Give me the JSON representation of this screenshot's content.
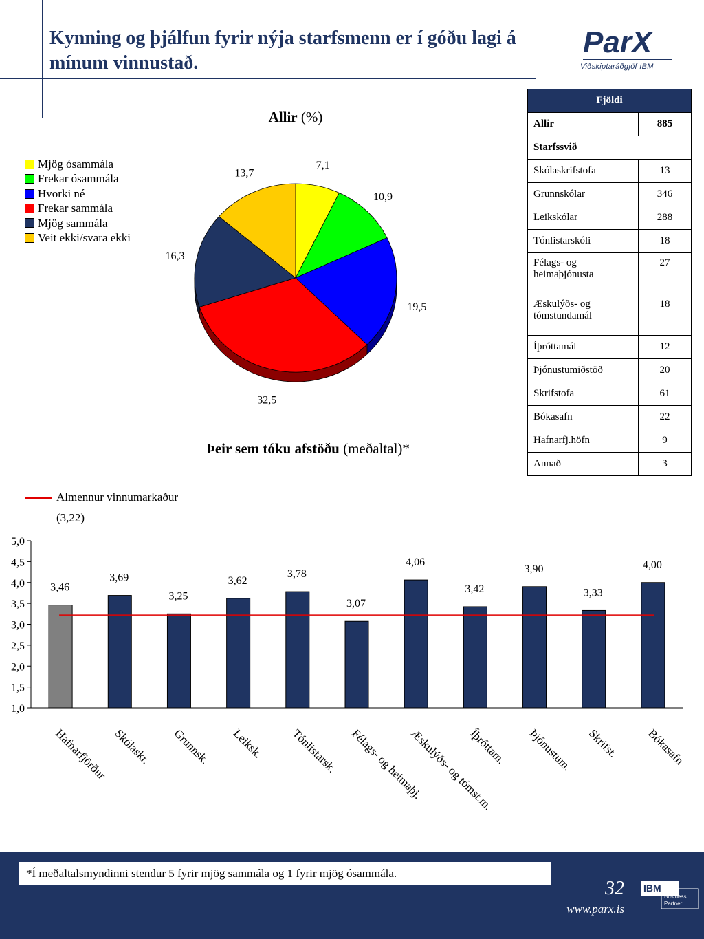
{
  "title": "Kynning og þjálfun fyrir nýja starfsmenn er í góðu lagi á mínum vinnustað.",
  "logo": {
    "name": "ParX",
    "tagline": "Viðskiptaráðgjöf IBM"
  },
  "pie_title": {
    "bold": "Allir",
    "rest": " (%)"
  },
  "bar_title": {
    "bold": "Þeir sem tóku afstöðu",
    "rest": " (meðaltal)*"
  },
  "reference": {
    "label": "Almennur vinnumarkaður",
    "value_text": "(3,22)"
  },
  "table": {
    "header": "Fjöldi",
    "total": {
      "label": "Allir",
      "value": "885"
    },
    "section": "Starfssvið",
    "rows": [
      {
        "label": "Skólaskrifstofa",
        "value": "13"
      },
      {
        "label": "Grunnskólar",
        "value": "346"
      },
      {
        "label": "Leikskólar",
        "value": "288"
      },
      {
        "label": "Tónlistarskóli",
        "value": "18"
      },
      {
        "label": "Félags- og heimaþjónusta",
        "value": "27"
      },
      {
        "label": "Æskulýðs- og tómstundamál",
        "value": "18"
      },
      {
        "label": "Íþróttamál",
        "value": "12"
      },
      {
        "label": "Þjónustumiðstöð",
        "value": "20"
      },
      {
        "label": "Skrifstofa",
        "value": "61"
      },
      {
        "label": "Bókasafn",
        "value": "22"
      },
      {
        "label": "Hafnarfj.höfn",
        "value": "9"
      },
      {
        "label": "Annað",
        "value": "3"
      }
    ]
  },
  "footer": {
    "note": "*Í meðaltalsmyndinni stendur 5 fyrir mjög sammála og 1 fyrir mjög ósammála.",
    "page": "32",
    "url": "www.parx.is",
    "badge_top": "IBM",
    "badge_bottom": "Business Partner"
  },
  "chart_data": [
    {
      "type": "pie",
      "title": "Allir (%)",
      "categories": [
        "Mjög ósammála",
        "Frekar ósammála",
        "Hvorki né",
        "Frekar sammála",
        "Mjög sammála",
        "Veit ekki/svara ekki"
      ],
      "values": [
        7.1,
        10.9,
        19.5,
        32.5,
        16.3,
        13.7
      ],
      "labels": [
        "7,1",
        "10,9",
        "19,5",
        "32,5",
        "16,3",
        "13,7"
      ],
      "colors": [
        "#ffff00",
        "#00ff00",
        "#0000ff",
        "#ff0000",
        "#1f3462",
        "#ffcc00"
      ],
      "legend_position": "left"
    },
    {
      "type": "bar",
      "title": "Þeir sem tóku afstöðu (meðaltal)*",
      "categories": [
        "Hafnarfjörður",
        "Skólaskr.",
        "Grunnsk.",
        "Leiksk.",
        "Tónlistarsk.",
        "Félags- og heimaþj.",
        "Æskulýðs- og tómst.m.",
        "Íþróttam.",
        "Þjónustum.",
        "Skrifst.",
        "Bókasafn"
      ],
      "values": [
        3.46,
        3.69,
        3.25,
        3.62,
        3.78,
        3.07,
        4.06,
        3.42,
        3.9,
        3.33,
        4.0
      ],
      "labels": [
        "3,46",
        "3,69",
        "3,25",
        "3,62",
        "3,78",
        "3,07",
        "4,06",
        "3,42",
        "3,90",
        "3,33",
        "4,00"
      ],
      "bar_colors": [
        "#808080",
        "#1f3462",
        "#1f3462",
        "#1f3462",
        "#1f3462",
        "#1f3462",
        "#1f3462",
        "#1f3462",
        "#1f3462",
        "#1f3462",
        "#1f3462"
      ],
      "reference_line": {
        "name": "Almennur vinnumarkaður",
        "value": 3.22,
        "color": "#e00000"
      },
      "ylim": [
        1.0,
        5.0
      ],
      "yticks": [
        "1,0",
        "1,5",
        "2,0",
        "2,5",
        "3,0",
        "3,5",
        "4,0",
        "4,5",
        "5,0"
      ]
    }
  ]
}
